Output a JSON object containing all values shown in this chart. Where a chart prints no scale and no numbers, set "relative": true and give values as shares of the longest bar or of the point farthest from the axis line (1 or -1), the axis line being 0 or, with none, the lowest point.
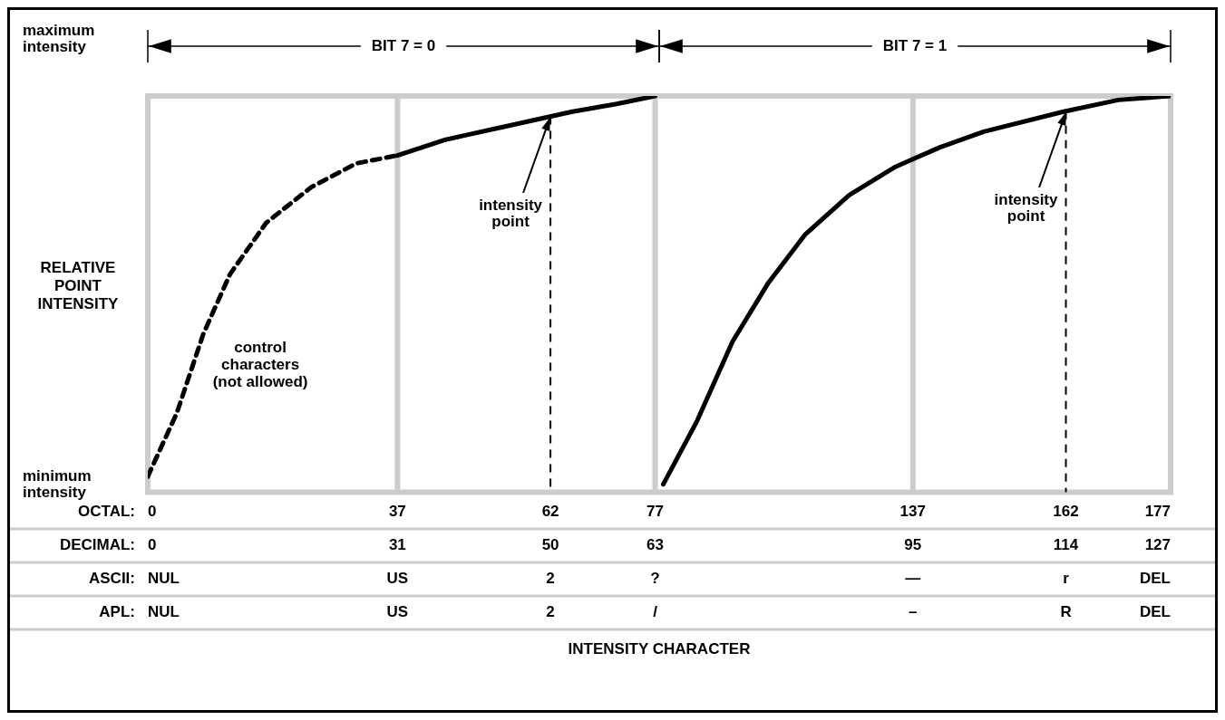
{
  "chart_data": {
    "type": "line",
    "relative": true,
    "ylabel": "RELATIVE POINT INTENSITY",
    "legend": false,
    "grid": false,
    "marker": "none",
    "xlim": [
      0,
      127
    ],
    "xticks": [
      0,
      31,
      50,
      63,
      95,
      114,
      127
    ],
    "series": [
      {
        "color": "#000000",
        "line_style": "dashed",
        "x": [
          0,
          3.6,
          6.9,
          10.2,
          14.7,
          20.3,
          25.9,
          31
        ],
        "values": [
          0.04,
          0.2,
          0.4,
          0.55,
          0.68,
          0.77,
          0.83,
          0.85
        ]
      },
      {
        "color": "#000000",
        "line_style": "solid",
        "x": [
          31,
          37,
          43.7,
          52.6,
          58.2,
          63
        ],
        "values": [
          0.85,
          0.89,
          0.92,
          0.96,
          0.98,
          1
        ]
      },
      {
        "color": "#000000",
        "line_style": "solid",
        "x": [
          64,
          68.2,
          72.6,
          77.1,
          81.6,
          87.1,
          92.7,
          98.3,
          103.8,
          113.6,
          120.5,
          127
        ],
        "values": [
          0.02,
          0.18,
          0.38,
          0.53,
          0.65,
          0.75,
          0.82,
          0.87,
          0.91,
          0.96,
          0.99,
          1
        ]
      }
    ],
    "ref_lines": [
      {
        "axis": "x",
        "value": 31,
        "color": "#cccccc"
      },
      {
        "axis": "x",
        "value": 63,
        "color": "#cccccc"
      },
      {
        "axis": "x",
        "value": 95,
        "color": "#cccccc"
      },
      {
        "axis": "x",
        "value": 50,
        "color": "#000000",
        "line_style": "dashed"
      },
      {
        "axis": "x",
        "value": 114,
        "color": "#000000",
        "line_style": "dashed"
      }
    ],
    "annotations": [
      "maximum intensity",
      "minimum intensity",
      "control characters (not allowed)",
      "intensity point",
      "intensity point",
      "BIT 7 = 0",
      "BIT 7 = 1",
      "OCTAL:",
      "0",
      "37",
      "62",
      "77",
      "137",
      "162",
      "177",
      "DECIMAL:",
      "ASCII:",
      "NUL",
      "US",
      "2",
      "?",
      "—",
      "r",
      "DEL",
      "APL:",
      "NUL",
      "US",
      "2",
      "/",
      "–",
      "R",
      "DEL",
      "INTENSITY CHARACTER"
    ]
  }
}
